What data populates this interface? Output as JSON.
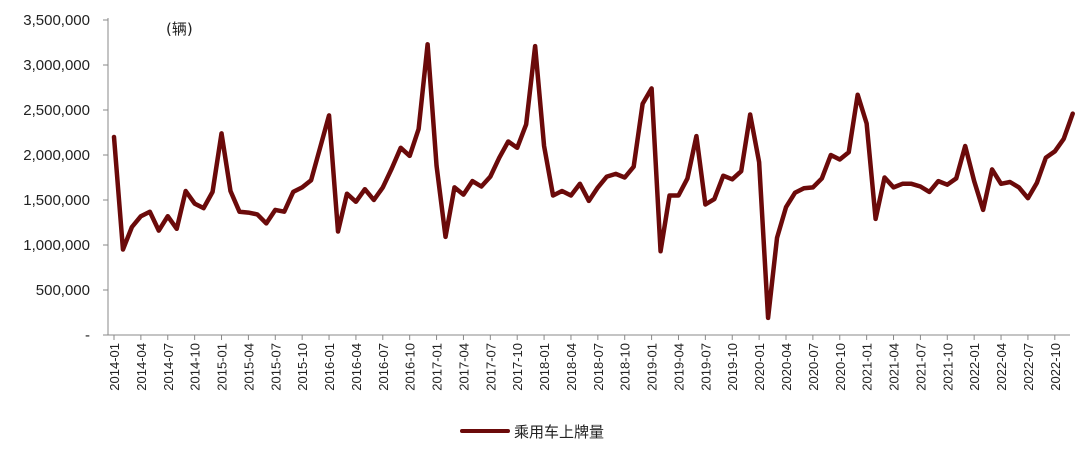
{
  "chart_data": {
    "type": "line",
    "unit_label": "(辆)",
    "ylim": [
      0,
      3500000
    ],
    "y_ticks": [
      {
        "value": 0,
        "label": "-"
      },
      {
        "value": 500000,
        "label": "500,000"
      },
      {
        "value": 1000000,
        "label": "1,000,000"
      },
      {
        "value": 1500000,
        "label": "1,500,000"
      },
      {
        "value": 2000000,
        "label": "2,000,000"
      },
      {
        "value": 2500000,
        "label": "2,500,000"
      },
      {
        "value": 3000000,
        "label": "3,000,000"
      },
      {
        "value": 3500000,
        "label": "3,500,000"
      }
    ],
    "x_tick_labels": [
      "2014-01",
      "2014-04",
      "2014-07",
      "2014-10",
      "2015-01",
      "2015-04",
      "2015-07",
      "2015-10",
      "2016-01",
      "2016-04",
      "2016-07",
      "2016-10",
      "2017-01",
      "2017-04",
      "2017-07",
      "2017-10",
      "2018-01",
      "2018-04",
      "2018-07",
      "2018-10",
      "2019-01",
      "2019-04",
      "2019-07",
      "2019-10",
      "2020-01",
      "2020-04",
      "2020-07",
      "2020-10",
      "2021-01",
      "2021-04",
      "2021-07",
      "2021-10",
      "2022-01",
      "2022-04",
      "2022-07",
      "2022-10"
    ],
    "grid": false,
    "legend_position": "bottom-center",
    "line_color": "#6b0a0a",
    "series": [
      {
        "name": "乘用车上牌量",
        "x": [
          "2014-01",
          "2014-02",
          "2014-03",
          "2014-04",
          "2014-05",
          "2014-06",
          "2014-07",
          "2014-08",
          "2014-09",
          "2014-10",
          "2014-11",
          "2014-12",
          "2015-01",
          "2015-02",
          "2015-03",
          "2015-04",
          "2015-05",
          "2015-06",
          "2015-07",
          "2015-08",
          "2015-09",
          "2015-10",
          "2015-11",
          "2015-12",
          "2016-01",
          "2016-02",
          "2016-03",
          "2016-04",
          "2016-05",
          "2016-06",
          "2016-07",
          "2016-08",
          "2016-09",
          "2016-10",
          "2016-11",
          "2016-12",
          "2017-01",
          "2017-02",
          "2017-03",
          "2017-04",
          "2017-05",
          "2017-06",
          "2017-07",
          "2017-08",
          "2017-09",
          "2017-10",
          "2017-11",
          "2017-12",
          "2018-01",
          "2018-02",
          "2018-03",
          "2018-04",
          "2018-05",
          "2018-06",
          "2018-07",
          "2018-08",
          "2018-09",
          "2018-10",
          "2018-11",
          "2018-12",
          "2019-01",
          "2019-02",
          "2019-03",
          "2019-04",
          "2019-05",
          "2019-06",
          "2019-07",
          "2019-08",
          "2019-09",
          "2019-10",
          "2019-11",
          "2019-12",
          "2020-01",
          "2020-02",
          "2020-03",
          "2020-04",
          "2020-05",
          "2020-06",
          "2020-07",
          "2020-08",
          "2020-09",
          "2020-10",
          "2020-11",
          "2020-12",
          "2021-01",
          "2021-02",
          "2021-03",
          "2021-04",
          "2021-05",
          "2021-06",
          "2021-07",
          "2021-08",
          "2021-09",
          "2021-10",
          "2021-11",
          "2021-12",
          "2022-01",
          "2022-02",
          "2022-03",
          "2022-04",
          "2022-05",
          "2022-06",
          "2022-07",
          "2022-08",
          "2022-09",
          "2022-10",
          "2022-11",
          "2022-12"
        ],
        "values": [
          2200000,
          950000,
          1200000,
          1320000,
          1370000,
          1160000,
          1320000,
          1180000,
          1600000,
          1460000,
          1410000,
          1590000,
          2240000,
          1600000,
          1370000,
          1360000,
          1340000,
          1240000,
          1390000,
          1370000,
          1590000,
          1640000,
          1720000,
          2080000,
          2440000,
          1150000,
          1570000,
          1480000,
          1620000,
          1500000,
          1640000,
          1850000,
          2080000,
          1990000,
          2290000,
          3230000,
          1880000,
          1090000,
          1640000,
          1560000,
          1710000,
          1650000,
          1760000,
          1970000,
          2150000,
          2080000,
          2340000,
          3210000,
          2100000,
          1550000,
          1600000,
          1550000,
          1680000,
          1490000,
          1640000,
          1760000,
          1790000,
          1750000,
          1870000,
          2570000,
          2740000,
          930000,
          1550000,
          1550000,
          1740000,
          2210000,
          1450000,
          1510000,
          1770000,
          1730000,
          1820000,
          2450000,
          1920000,
          190000,
          1080000,
          1420000,
          1580000,
          1630000,
          1640000,
          1740000,
          2000000,
          1950000,
          2030000,
          2670000,
          2350000,
          1290000,
          1750000,
          1640000,
          1680000,
          1680000,
          1650000,
          1590000,
          1710000,
          1670000,
          1740000,
          2100000,
          1710000,
          1390000,
          1840000,
          1680000,
          1700000,
          1640000,
          1520000,
          1690000,
          1970000,
          2040000,
          2180000,
          2460000
        ]
      }
    ]
  }
}
